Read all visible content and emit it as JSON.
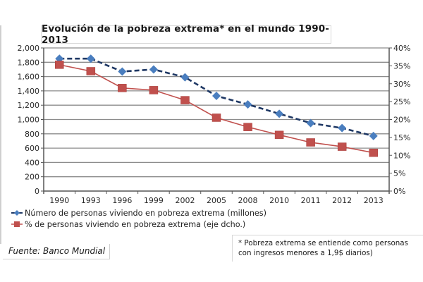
{
  "chart_data": {
    "type": "line",
    "title": "Evolución de la pobreza extrema* en el mundo 1990-2013",
    "categories": [
      "1990",
      "1993",
      "1996",
      "1999",
      "2002",
      "2005",
      "2008",
      "2010",
      "2011",
      "2012",
      "2013"
    ],
    "series": [
      {
        "name": "Número de personas viviendo en pobreza extrema (millones)",
        "axis": "left",
        "style": "dashed",
        "marker": "diamond",
        "color": "#4a7ebf",
        "line_color": "#1f3864",
        "values": [
          1850,
          1850,
          1670,
          1700,
          1590,
          1330,
          1210,
          1080,
          950,
          880,
          770
        ]
      },
      {
        "name": "% de personas viviendo en pobreza extrema (eje dcho.)",
        "axis": "right",
        "style": "solid",
        "marker": "square",
        "color": "#c0504d",
        "values": [
          35.3,
          33.5,
          28.8,
          28.2,
          25.4,
          20.5,
          17.9,
          15.7,
          13.6,
          12.4,
          10.7
        ]
      }
    ],
    "y_left": {
      "ylim": [
        0,
        2000
      ],
      "ticks": [
        0,
        200,
        400,
        600,
        800,
        1000,
        1200,
        1400,
        1600,
        1800,
        2000
      ],
      "tick_labels": [
        "0",
        "200",
        "400",
        "600",
        "800",
        "1,000",
        "1,200",
        "1,400",
        "1,600",
        "1,800",
        "2,000"
      ]
    },
    "y_right": {
      "ylim": [
        0,
        40
      ],
      "ticks": [
        0,
        5,
        10,
        15,
        20,
        25,
        30,
        35,
        40
      ],
      "tick_labels": [
        "0%",
        "5%",
        "10%",
        "15%",
        "20%",
        "25%",
        "30%",
        "35%",
        "40%"
      ]
    },
    "xlabel": "",
    "ylabel": "",
    "grid": true,
    "legend_position": "bottom-left"
  },
  "legend": {
    "items": [
      "Número de personas viviendo en pobreza extrema (millones)",
      "% de personas viviendo en pobreza extrema (eje dcho.)"
    ]
  },
  "source": "Fuente: Banco Mundial",
  "note": {
    "line1": "* Pobreza extrema se entiende como  personas",
    "line2": "con ingresos menores  a 1,9$ diarios)"
  }
}
